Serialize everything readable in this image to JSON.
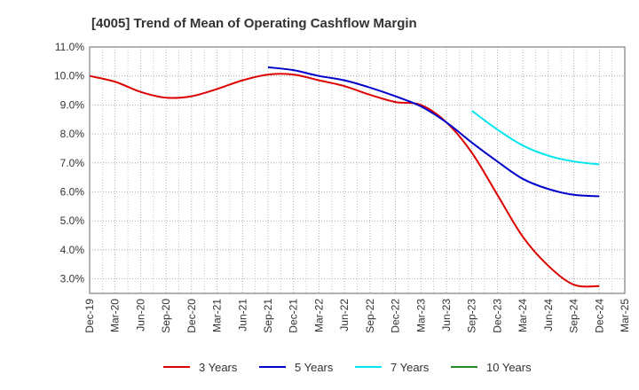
{
  "chart_data": {
    "type": "line",
    "title": "[4005]  Trend of Mean of Operating Cashflow Margin",
    "xlabel": "",
    "ylabel": "",
    "ylim": [
      2.5,
      11.0
    ],
    "y_ticks": [
      "3.0%",
      "4.0%",
      "5.0%",
      "6.0%",
      "7.0%",
      "8.0%",
      "9.0%",
      "10.0%",
      "11.0%"
    ],
    "y_tick_values": [
      3,
      4,
      5,
      6,
      7,
      8,
      9,
      10,
      11
    ],
    "categories": [
      "Dec-19",
      "Mar-20",
      "Jun-20",
      "Sep-20",
      "Dec-20",
      "Mar-21",
      "Jun-21",
      "Sep-21",
      "Dec-21",
      "Mar-22",
      "Jun-22",
      "Sep-22",
      "Dec-22",
      "Mar-23",
      "Jun-23",
      "Sep-23",
      "Dec-23",
      "Mar-24",
      "Jun-24",
      "Sep-24",
      "Dec-24",
      "Mar-25"
    ],
    "grid": true,
    "legend_position": "bottom",
    "series": [
      {
        "name": "3 Years",
        "color": "#dd0000",
        "values": [
          10.0,
          9.8,
          9.45,
          9.25,
          9.3,
          9.55,
          9.85,
          10.05,
          10.05,
          9.85,
          9.65,
          9.35,
          9.1,
          9.0,
          8.4,
          7.35,
          5.9,
          4.45,
          3.45,
          2.8,
          2.75,
          null
        ]
      },
      {
        "name": "5 Years",
        "color": "#0000cc",
        "values": [
          null,
          null,
          null,
          null,
          null,
          null,
          null,
          10.3,
          10.2,
          10.0,
          9.85,
          9.6,
          9.3,
          8.95,
          8.4,
          7.7,
          7.05,
          6.45,
          6.1,
          5.9,
          5.85,
          null
        ]
      },
      {
        "name": "7 Years",
        "color": "#00e5ee",
        "values": [
          null,
          null,
          null,
          null,
          null,
          null,
          null,
          null,
          null,
          null,
          null,
          null,
          null,
          null,
          null,
          8.8,
          8.15,
          7.6,
          7.25,
          7.05,
          6.95,
          null
        ]
      },
      {
        "name": "10 Years",
        "color": "#228b22",
        "values": [
          null,
          null,
          null,
          null,
          null,
          null,
          null,
          null,
          null,
          null,
          null,
          null,
          null,
          null,
          null,
          null,
          null,
          null,
          null,
          null,
          null,
          null
        ]
      }
    ]
  }
}
